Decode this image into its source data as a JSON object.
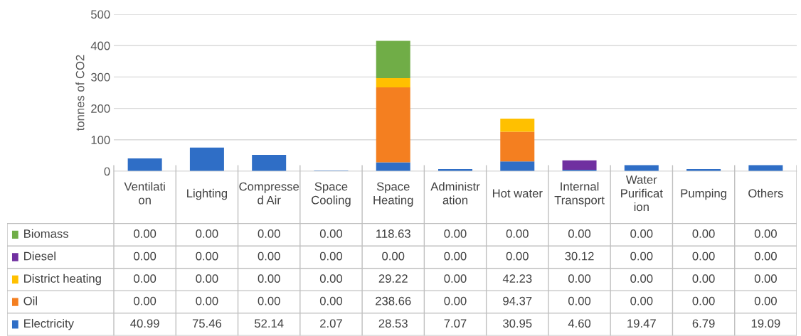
{
  "chart_data": {
    "type": "bar",
    "stacked": true,
    "ylabel": "tonnes of CO2",
    "categories": [
      "Ventilation",
      "Lighting",
      "Compressed Air",
      "Space Cooling",
      "Space Heating",
      "Administration",
      "Hot water",
      "Internal Transport",
      "Water Purification",
      "Pumping",
      "Others"
    ],
    "series": [
      {
        "name": "Electricity",
        "color": "#2f6ec6",
        "values": [
          40.99,
          75.46,
          52.14,
          2.07,
          28.53,
          7.07,
          30.95,
          4.6,
          19.47,
          6.79,
          19.09
        ],
        "value_labels": [
          "40.99",
          "75.46",
          "52.14",
          "2.07",
          "28.53",
          "7.07",
          "30.95",
          "4.60",
          "19.47",
          "6.79",
          "19.09"
        ]
      },
      {
        "name": "Oil",
        "color": "#f47f20",
        "values": [
          0,
          0,
          0,
          0,
          238.66,
          0,
          94.37,
          0,
          0,
          0,
          0
        ],
        "value_labels": [
          "0.00",
          "0.00",
          "0.00",
          "0.00",
          "238.66",
          "0.00",
          "94.37",
          "0.00",
          "0.00",
          "0.00",
          "0.00"
        ]
      },
      {
        "name": "District heating",
        "color": "#ffc000",
        "values": [
          0,
          0,
          0,
          0,
          29.22,
          0,
          42.23,
          0,
          0,
          0,
          0
        ],
        "value_labels": [
          "0.00",
          "0.00",
          "0.00",
          "0.00",
          "29.22",
          "0.00",
          "42.23",
          "0.00",
          "0.00",
          "0.00",
          "0.00"
        ]
      },
      {
        "name": "Diesel",
        "color": "#7030a0",
        "values": [
          0,
          0,
          0,
          0,
          0,
          0,
          0,
          30.12,
          0,
          0,
          0
        ],
        "value_labels": [
          "0.00",
          "0.00",
          "0.00",
          "0.00",
          "0.00",
          "0.00",
          "0.00",
          "30.12",
          "0.00",
          "0.00",
          "0.00"
        ]
      },
      {
        "name": "Biomass",
        "color": "#70ad47",
        "values": [
          0,
          0,
          0,
          0,
          118.63,
          0,
          0,
          0,
          0,
          0,
          0
        ],
        "value_labels": [
          "0.00",
          "0.00",
          "0.00",
          "0.00",
          "118.63",
          "0.00",
          "0.00",
          "0.00",
          "0.00",
          "0.00",
          "0.00"
        ]
      }
    ],
    "ylim": [
      0,
      500
    ],
    "yticks": [
      0,
      100,
      200,
      300,
      400,
      500
    ],
    "grid": "y",
    "legend": "bottom",
    "tick_labels": "y"
  }
}
